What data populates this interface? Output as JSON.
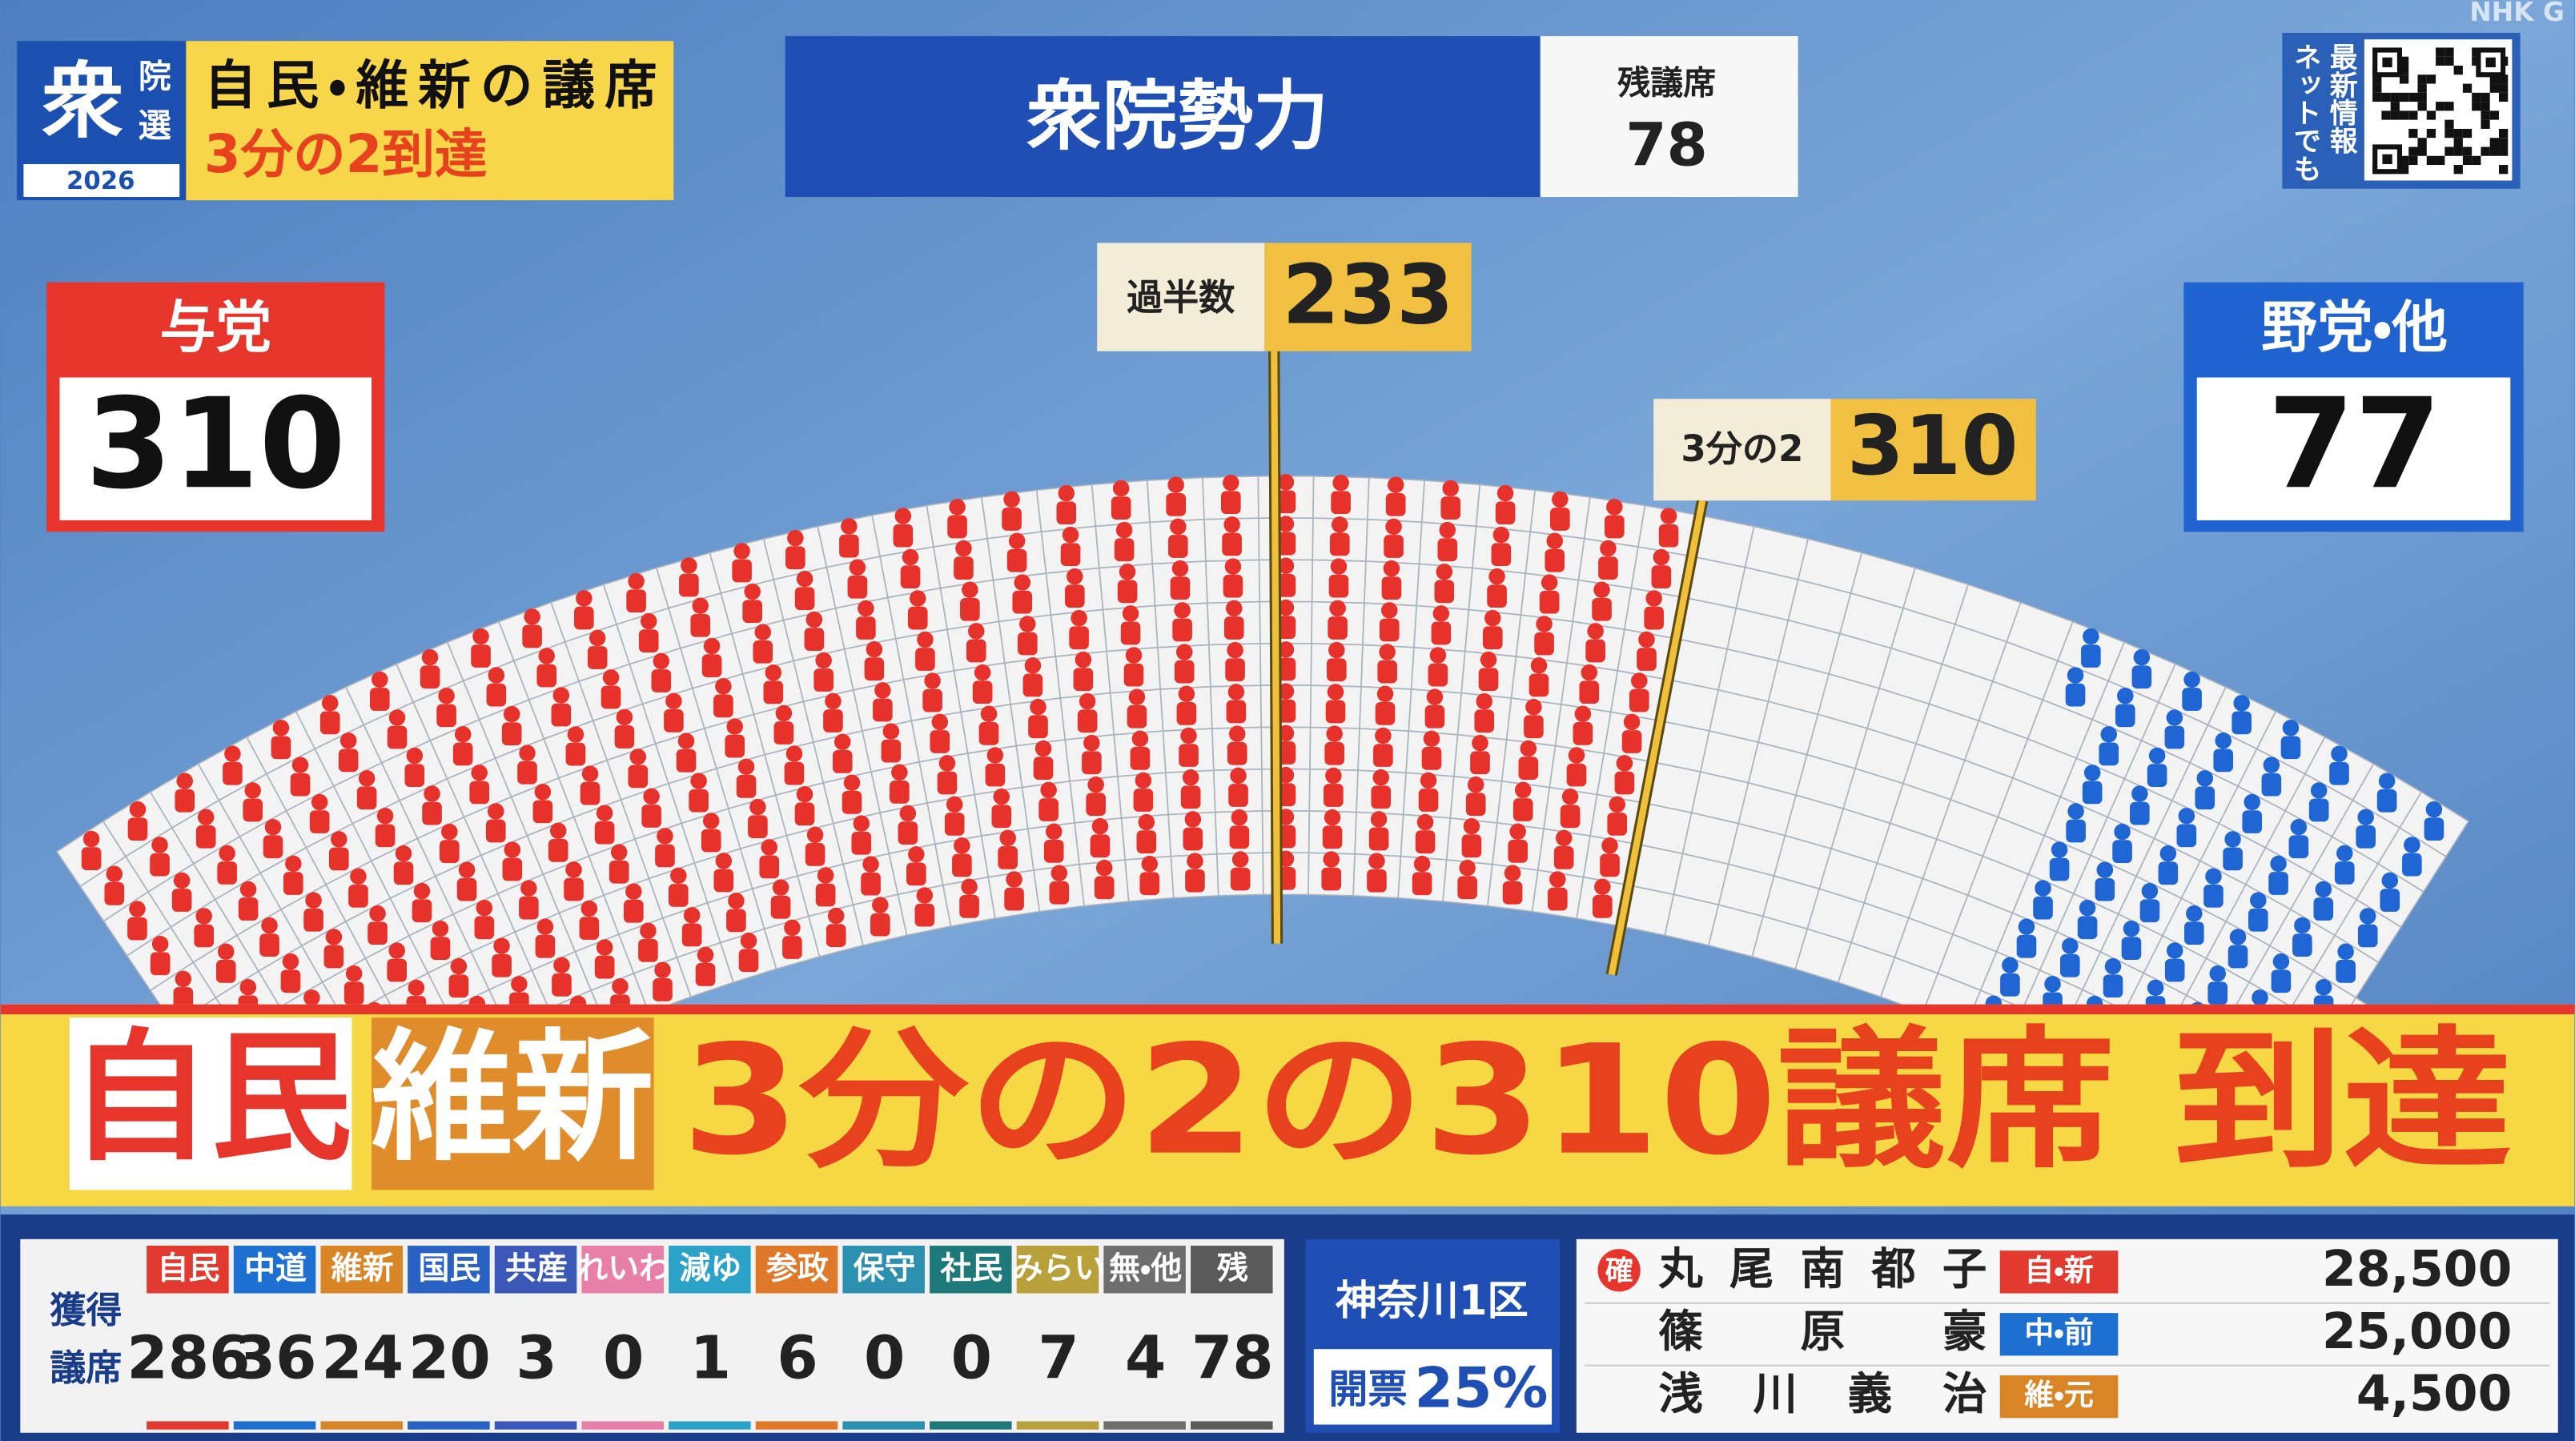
{
  "logo": "NHK G",
  "badge": {
    "main": "衆",
    "sub": [
      "院",
      "選"
    ],
    "year": "2026"
  },
  "headline": [
    "自民・維新の議席",
    "3分の2到達"
  ],
  "title": "衆院勢力",
  "remaining": {
    "label": "残議席",
    "value": 78
  },
  "qr_text": [
    "最新情報",
    "ネットでも"
  ],
  "ruling": {
    "label": "与党",
    "value": 310,
    "color": "#e6322b"
  },
  "opposition": {
    "label": "野党・他",
    "value": 77,
    "color": "#1f66d4"
  },
  "majority": {
    "label": "過半数",
    "value": 233
  },
  "two_thirds": {
    "label": "3分の2",
    "value": 310
  },
  "banner": [
    "自民",
    "維新",
    "3分の2の310議席 到達"
  ],
  "results": {
    "label": [
      "獲得",
      "議席"
    ],
    "parties": [
      {
        "name": "自民",
        "seats": 286,
        "color": "#e23a2e"
      },
      {
        "name": "中道",
        "seats": 36,
        "color": "#1d6fd2"
      },
      {
        "name": "維新",
        "seats": 24,
        "color": "#d98526"
      },
      {
        "name": "国民",
        "seats": 20,
        "color": "#2a62c4"
      },
      {
        "name": "共産",
        "seats": 3,
        "color": "#3b58b8"
      },
      {
        "name": "れいわ",
        "seats": 0,
        "color": "#e87fa8"
      },
      {
        "name": "減ゆ",
        "seats": 1,
        "color": "#2ba3c9"
      },
      {
        "name": "参政",
        "seats": 6,
        "color": "#e0782a"
      },
      {
        "name": "保守",
        "seats": 0,
        "color": "#2b8fb0"
      },
      {
        "name": "社民",
        "seats": 0,
        "color": "#1e7a7a"
      },
      {
        "name": "みらい",
        "seats": 7,
        "color": "#b8a13a"
      },
      {
        "name": "無・他",
        "seats": 4,
        "color": "#6e6e6e"
      },
      {
        "name": "残",
        "seats": 78,
        "color": "#5a5a5a"
      }
    ]
  },
  "district": {
    "name": "神奈川1区",
    "count_label": "開票",
    "count": "25%"
  },
  "candidates": [
    {
      "status": "確",
      "name": "丸尾南都子",
      "party": "自・新",
      "party_color": "#e23a2e",
      "votes": "28,500"
    },
    {
      "name": "篠原豪",
      "party": "中・前",
      "party_color": "#1d6fd2",
      "votes": "25,000"
    },
    {
      "name": "浅川義治",
      "party": "維・元",
      "party_color": "#d98526",
      "votes": "4,500"
    }
  ]
}
